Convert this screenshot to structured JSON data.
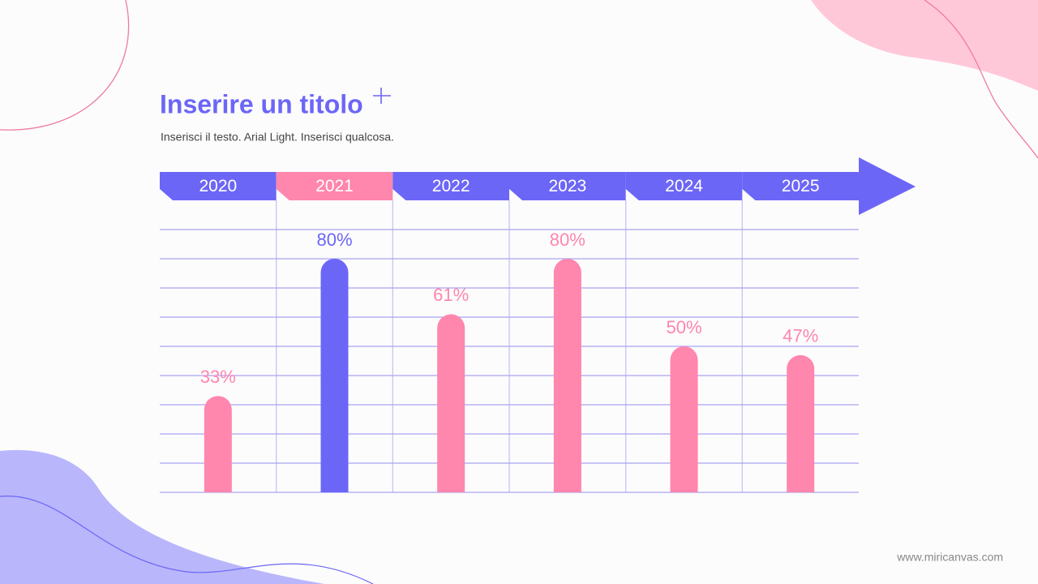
{
  "chart_data": {
    "type": "bar",
    "title": "Inserire un titolo",
    "subtitle": "Inserisci il testo. Arial Light. Inserisci qualcosa.",
    "categories": [
      "2020",
      "2021",
      "2022",
      "2023",
      "2024",
      "2025"
    ],
    "values": [
      33,
      80,
      61,
      80,
      50,
      47
    ],
    "value_labels": [
      "33%",
      "80%",
      "61%",
      "80%",
      "50%",
      "47%"
    ],
    "colors": [
      "#ff86ad",
      "#6c66f7",
      "#ff86ad",
      "#ff86ad",
      "#ff86ad",
      "#ff86ad"
    ],
    "header_colors": [
      "#6c66f7",
      "#ff86ad",
      "#6c66f7",
      "#6c66f7",
      "#6c66f7",
      "#6c66f7"
    ],
    "ylim": [
      0,
      90
    ],
    "yticks": [
      0,
      10,
      20,
      30,
      40,
      50,
      60,
      70,
      80,
      90
    ],
    "grid": true
  },
  "footer": "www.miricanvas.com"
}
